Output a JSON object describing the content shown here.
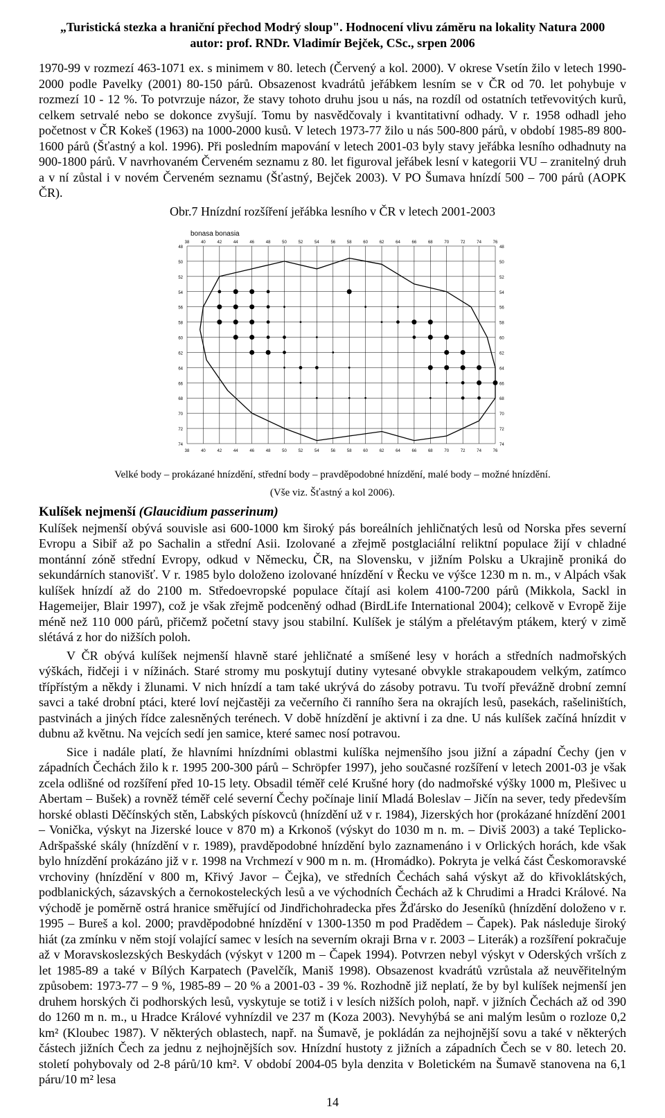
{
  "header": {
    "title": "„Turistická stezka a hraniční přechod Modrý sloup\". Hodnocení vlivu záměru na lokality Natura 2000",
    "author": "autor: prof. RNDr. Vladimír Bejček, CSc., srpen 2006"
  },
  "paragraph1": "1970-99 v rozmezí 463-1071 ex. s minimem v 80. letech (Červený a kol. 2000). V okrese Vsetín žilo v letech 1990-2000 podle Pavelky (2001) 80-150 párů. Obsazenost kvadrátů jeřábkem lesním se v ČR od 70. let pohybuje v rozmezí 10 - 12 %. To potvrzuje názor, že stavy tohoto druhu jsou u nás, na rozdíl od ostatních tetřevovitých kurů, celkem setrvalé nebo se dokonce zvyšují. Tomu by nasvědčovaly i kvantitativní odhady. V r. 1958 odhadl jeho početnost v ČR Kokeš (1963) na 1000-2000 kusů. V letech 1973-77 žilo u nás 500-800 párů, v období 1985-89 800-1600 párů (Šťastný a kol. 1996). Při posledním mapování v letech 2001-03 byly stavy jeřábka lesního odhadnuty na 900-1800 párů. V navrhovaném Červeném seznamu z 80. let figuroval jeřábek lesní v kategorii VU – zranitelný druh a v ní zůstal i v novém Červeném seznamu (Šťastný, Bejček 2003). V PO Šumava hnízdí 500 – 700 párů (AOPK ČR).",
  "map_caption": "Obr.7 Hnízdní rozšíření jeřábka lesního v ČR v letech 2001-2003",
  "map": {
    "species_latin": "bonasa bonasia",
    "cols": [
      "38",
      "40",
      "42",
      "44",
      "46",
      "48",
      "50",
      "52",
      "54",
      "56",
      "58",
      "60",
      "62",
      "64",
      "66",
      "68",
      "70",
      "72",
      "74",
      "76"
    ],
    "rows": [
      "48",
      "50",
      "52",
      "54",
      "56",
      "58",
      "60",
      "62",
      "64",
      "66",
      "68",
      "70",
      "72",
      "74"
    ],
    "bottom_cols": [
      "38",
      "40",
      "42",
      "44",
      "46",
      "48",
      "50",
      "52",
      "54",
      "56",
      "58",
      "60",
      "62",
      "64",
      "66",
      "68",
      "70",
      "72",
      "74",
      "76"
    ],
    "points_large": [
      [
        3,
        3
      ],
      [
        4,
        3
      ],
      [
        2,
        4
      ],
      [
        3,
        4
      ],
      [
        4,
        4
      ],
      [
        2,
        5
      ],
      [
        3,
        5
      ],
      [
        4,
        5
      ],
      [
        3,
        6
      ],
      [
        4,
        6
      ],
      [
        4,
        7
      ],
      [
        5,
        7
      ],
      [
        10,
        3
      ],
      [
        14,
        5
      ],
      [
        15,
        5
      ],
      [
        15,
        6
      ],
      [
        16,
        6
      ],
      [
        16,
        7
      ],
      [
        17,
        7
      ],
      [
        15,
        8
      ],
      [
        16,
        8
      ],
      [
        17,
        8
      ],
      [
        18,
        8
      ],
      [
        18,
        9
      ],
      [
        19,
        9
      ]
    ],
    "points_med": [
      [
        2,
        3
      ],
      [
        5,
        3
      ],
      [
        5,
        4
      ],
      [
        5,
        5
      ],
      [
        5,
        6
      ],
      [
        6,
        6
      ],
      [
        6,
        7
      ],
      [
        7,
        8
      ],
      [
        8,
        8
      ],
      [
        13,
        5
      ],
      [
        14,
        6
      ],
      [
        17,
        9
      ],
      [
        18,
        10
      ],
      [
        17,
        10
      ]
    ],
    "points_small": [
      [
        6,
        4
      ],
      [
        7,
        5
      ],
      [
        8,
        6
      ],
      [
        9,
        7
      ],
      [
        10,
        8
      ],
      [
        11,
        4
      ],
      [
        12,
        5
      ],
      [
        13,
        4
      ],
      [
        16,
        9
      ],
      [
        15,
        10
      ],
      [
        10,
        10
      ],
      [
        11,
        10
      ],
      [
        6,
        8
      ],
      [
        7,
        9
      ],
      [
        8,
        10
      ]
    ],
    "grid_color": "#000000",
    "outline_color": "#000000",
    "bg_color": "#ffffff",
    "label_fontsize": 6
  },
  "legend_line1": "Velké body – prokázané hnízdění, střední body – pravděpodobné hnízdění, malé body – možné hnízdění.",
  "legend_line2": "(Vše viz. Šťastný a kol 2006).",
  "section2": {
    "heading_bold": "Kulíšek nejmenší",
    "heading_italic": "(Glaucidium passerinum)"
  },
  "paragraph2a": "Kulíšek nejmenší obývá souvisle asi 600-1000 km široký pás boreálních jehličnatých lesů od Norska přes severní Evropu a Sibiř až po Sachalin a střední Asii. Izolované a zřejmě postglaciální reliktní populace žijí v chladné montánní zóně střední Evropy, odkud v Německu, ČR, na Slovensku, v jižním Polsku a Ukrajině proniká do sekundárních stanovišť. V r. 1985 bylo doloženo izolované hnízdění v Řecku ve výšce 1230 m n. m., v Alpách však kulíšek hnízdí až do 2100 m. Středoevropské populace čítají asi kolem 4100-7200 párů (Mikkola, Sackl in Hagemeijer, Blair 1997), což je však zřejmě podceněný odhad (BirdLife International 2004); celkově v Evropě žije méně než 110 000 párů, přičemž početní stavy jsou stabilní. Kulíšek je stálým a přelétavým ptákem, který v zimě slétává z hor do nižších poloh.",
  "paragraph2b": "V ČR obývá kulíšek nejmenší hlavně staré jehličnaté a smíšené lesy v horách a středních nadmořských výškách, řidčeji i v nížinách. Staré stromy mu poskytují dutiny vytesané obvykle strakapoudem velkým, zatímco třípřístým a někdy i žlunami. V nich hnízdí a tam také ukrývá do zásoby potravu. Tu tvoří převážně drobní zemní savci a také drobní ptáci, které loví nejčastěji za večerního či ranního šera na okrajích lesů, pasekách, rašeliništích, pastvinách a jiných řídce zalesněných terénech. V době hnízdění je aktivní i za dne. U nás kulíšek začíná hnízdit v dubnu až květnu. Na vejcích sedí jen samice, které samec nosí potravou.",
  "paragraph2c": "Sice i nadále platí, že hlavními hnízdními oblastmi kulíška nejmenšího jsou jižní a západní Čechy (jen v západních Čechách žilo k r. 1995 200-300 párů – Schröpfer 1997), jeho současné rozšíření v letech 2001-03 je však zcela odlišné od rozšíření před 10-15 lety. Obsadil téměř celé Krušné hory (do nadmořské výšky 1000 m, Plešivec u Abertam – Bušek) a rovněž téměř celé severní Čechy počínaje linií Mladá Boleslav – Jičín na sever, tedy především horské oblasti Děčínských stěn, Labských pískovců (hnízdění už v r. 1984), Jizerských hor (prokázané hnízdění 2001 – Vonička, výskyt na Jizerské louce v 870 m) a Krkonoš (výskyt do 1030 m n. m. – Diviš 2003) a také Teplicko-Adršpašské skály (hnízdění v r. 1989), pravděpodobné hnízdění bylo zaznamenáno i v Orlických horách, kde však bylo hnízdění prokázáno již v r. 1998 na Vrchmezí v 900 m n. m. (Hromádko). Pokryta je velká část Českomoravské vrchoviny (hnízdění v 800 m, Křivý Javor – Čejka), ve středních Čechách sahá výskyt až do křivoklátských, podblanických, sázavských a černokosteleckých lesů a ve východních Čechách až k Chrudimi a Hradci Králové. Na východě je poměrně ostrá hranice směřující od Jindřichohradecka přes Žďársko do Jeseníků (hnízdění doloženo v r. 1995 – Bureš a kol. 2000; pravděpodobné hnízdění v 1300-1350 m pod Pradědem – Čapek). Pak následuje široký hiát (za zmínku v něm stojí volající samec v lesích na severním okraji Brna v r. 2003 – Literák) a rozšíření pokračuje až v Moravskoslezských Beskydách (výskyt v 1200 m – Čapek 1994). Potvrzen nebyl výskyt v Oderských vrších z let 1985-89 a také v Bílých Karpatech (Pavelčík, Maniš 1998). Obsazenost kvadrátů vzrůstala až neuvěřitelným způsobem: 1973-77 – 9 %, 1985-89 – 20 % a 2001-03 - 39 %. Rozhodně již neplatí, že by byl kulíšek nejmenší jen druhem horských či podhorských lesů, vyskytuje se totiž i v lesích nižších poloh, např. v jižních Čechách až od 390 do 1260 m n. m., u Hradce Králové vyhnízdil ve 237 m (Koza 2003). Nevyhýbá se ani malým lesům o rozloze 0,2 km² (Kloubec 1987). V některých oblastech, např. na Šumavě, je pokládán za nejhojnější sovu a také v některých částech jižních Čech za jednu z nejhojnějších sov. Hnízdní hustoty z jižních a západních Čech se v 80. letech 20. století pohybovaly od 2-8 párů/10 km². V období 2004-05 byla denzita v Boletickém na Šumavě stanovena na 6,1 páru/10 m² lesa",
  "page_number": "14"
}
